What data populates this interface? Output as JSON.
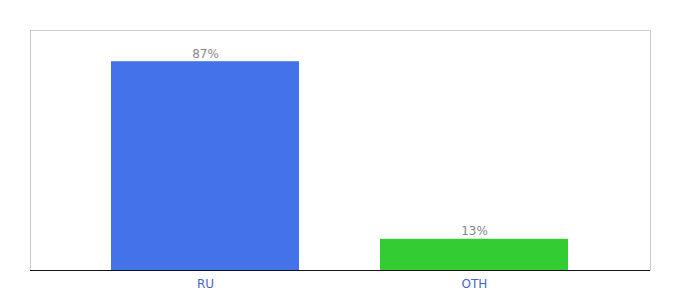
{
  "chart_data": {
    "type": "bar",
    "categories": [
      "RU",
      "OTH"
    ],
    "values": [
      87,
      13
    ],
    "colors": [
      "#4472e8",
      "#33cc33"
    ],
    "value_labels": [
      "87%",
      "13%"
    ],
    "data_labels": true,
    "ylim": [
      0,
      100
    ],
    "tick_labels": "x",
    "grid": false
  }
}
